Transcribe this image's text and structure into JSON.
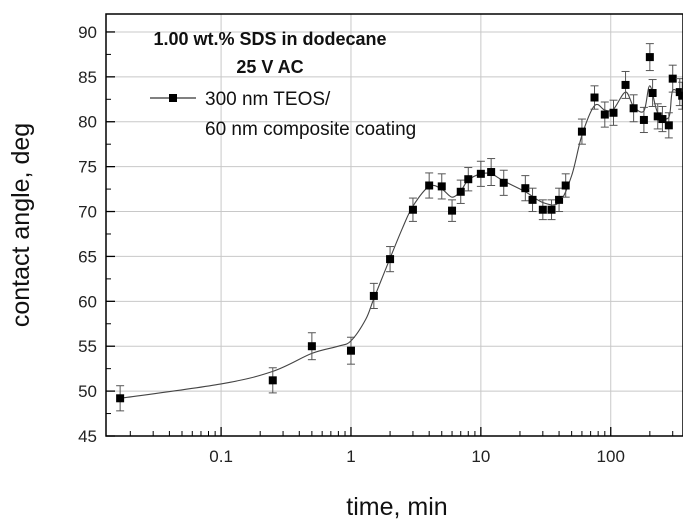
{
  "chart_data": {
    "type": "scatter",
    "title": "",
    "xlabel": "time, min",
    "ylabel": "contact angle, deg",
    "xscale": "log",
    "xlim": [
      0.013,
      360
    ],
    "ylim": [
      45,
      92
    ],
    "x_ticks": [
      {
        "value": 0.1,
        "label": "0.1"
      },
      {
        "value": 1,
        "label": "1"
      },
      {
        "value": 10,
        "label": "10"
      },
      {
        "value": 100,
        "label": "100"
      }
    ],
    "y_ticks": [
      {
        "value": 45,
        "label": "45"
      },
      {
        "value": 50,
        "label": "50"
      },
      {
        "value": 55,
        "label": "55"
      },
      {
        "value": 60,
        "label": "60"
      },
      {
        "value": 65,
        "label": "65"
      },
      {
        "value": 70,
        "label": "70"
      },
      {
        "value": 75,
        "label": "75"
      },
      {
        "value": 80,
        "label": "80"
      },
      {
        "value": 85,
        "label": "85"
      },
      {
        "value": 90,
        "label": "90"
      }
    ],
    "grid": true,
    "legend_position": "top-left",
    "annotations": [
      "1.00 wt.% SDS in dodecane",
      "25 V AC"
    ],
    "series": [
      {
        "name": "300 nm TEOS/\n60 nm composite coating",
        "legend_lines": [
          "300 nm TEOS/",
          "60 nm composite coating"
        ],
        "marker": "square",
        "color": "#000000",
        "points": [
          {
            "x": 0.0167,
            "y": 49.2,
            "err": 1.4
          },
          {
            "x": 0.25,
            "y": 51.2,
            "err": 1.4
          },
          {
            "x": 0.5,
            "y": 55.0,
            "err": 1.5
          },
          {
            "x": 1.0,
            "y": 54.5,
            "err": 1.5
          },
          {
            "x": 1.5,
            "y": 60.6,
            "err": 1.4
          },
          {
            "x": 2.0,
            "y": 64.7,
            "err": 1.4
          },
          {
            "x": 3.0,
            "y": 70.2,
            "err": 1.3
          },
          {
            "x": 4.0,
            "y": 72.9,
            "err": 1.4
          },
          {
            "x": 5.0,
            "y": 72.8,
            "err": 1.4
          },
          {
            "x": 6.0,
            "y": 70.1,
            "err": 1.2
          },
          {
            "x": 7.0,
            "y": 72.2,
            "err": 1.3
          },
          {
            "x": 8.0,
            "y": 73.6,
            "err": 1.3
          },
          {
            "x": 10.0,
            "y": 74.2,
            "err": 1.4
          },
          {
            "x": 12.0,
            "y": 74.4,
            "err": 1.5
          },
          {
            "x": 15.0,
            "y": 73.2,
            "err": 1.4
          },
          {
            "x": 22.0,
            "y": 72.6,
            "err": 1.4
          },
          {
            "x": 25.0,
            "y": 71.3,
            "err": 1.3
          },
          {
            "x": 30.0,
            "y": 70.2,
            "err": 1.1
          },
          {
            "x": 35.0,
            "y": 70.2,
            "err": 1.1
          },
          {
            "x": 40.0,
            "y": 71.3,
            "err": 1.3
          },
          {
            "x": 45.0,
            "y": 72.9,
            "err": 1.3
          },
          {
            "x": 60.0,
            "y": 78.9,
            "err": 1.4
          },
          {
            "x": 75.0,
            "y": 82.7,
            "err": 1.3
          },
          {
            "x": 90.0,
            "y": 80.8,
            "err": 1.4
          },
          {
            "x": 105.0,
            "y": 81.0,
            "err": 1.4
          },
          {
            "x": 130.0,
            "y": 84.1,
            "err": 1.5
          },
          {
            "x": 150.0,
            "y": 81.5,
            "err": 1.5
          },
          {
            "x": 180.0,
            "y": 80.2,
            "err": 1.4
          },
          {
            "x": 200.0,
            "y": 87.2,
            "err": 1.5
          },
          {
            "x": 210.0,
            "y": 83.2,
            "err": 1.5
          },
          {
            "x": 230.0,
            "y": 80.6,
            "err": 1.4
          },
          {
            "x": 250.0,
            "y": 80.3,
            "err": 1.4
          },
          {
            "x": 280.0,
            "y": 79.6,
            "err": 1.4
          },
          {
            "x": 300.0,
            "y": 84.8,
            "err": 1.5
          },
          {
            "x": 340.0,
            "y": 83.3,
            "err": 1.5
          },
          {
            "x": 355.0,
            "y": 82.9,
            "err": 1.5
          }
        ],
        "fit_curve": [
          {
            "x": 0.0167,
            "y": 49.2
          },
          {
            "x": 0.1,
            "y": 50.8
          },
          {
            "x": 0.25,
            "y": 52.2
          },
          {
            "x": 0.5,
            "y": 54.2
          },
          {
            "x": 0.8,
            "y": 55.0
          },
          {
            "x": 1.0,
            "y": 55.6
          },
          {
            "x": 1.3,
            "y": 58.0
          },
          {
            "x": 1.5,
            "y": 60.3
          },
          {
            "x": 2.0,
            "y": 64.8
          },
          {
            "x": 2.5,
            "y": 68.2
          },
          {
            "x": 3.0,
            "y": 70.6
          },
          {
            "x": 4.0,
            "y": 72.8
          },
          {
            "x": 5.0,
            "y": 72.5
          },
          {
            "x": 6.0,
            "y": 71.6
          },
          {
            "x": 7.0,
            "y": 72.3
          },
          {
            "x": 8.0,
            "y": 73.5
          },
          {
            "x": 10.0,
            "y": 74.2
          },
          {
            "x": 12.0,
            "y": 74.2
          },
          {
            "x": 15.0,
            "y": 73.4
          },
          {
            "x": 22.0,
            "y": 72.2
          },
          {
            "x": 30.0,
            "y": 71.0
          },
          {
            "x": 40.0,
            "y": 71.0
          },
          {
            "x": 50.0,
            "y": 74.0
          },
          {
            "x": 60.0,
            "y": 78.5
          },
          {
            "x": 75.0,
            "y": 81.8
          },
          {
            "x": 90.0,
            "y": 81.3
          },
          {
            "x": 105.0,
            "y": 81.4
          },
          {
            "x": 130.0,
            "y": 83.3
          },
          {
            "x": 150.0,
            "y": 81.7
          },
          {
            "x": 180.0,
            "y": 81.2
          },
          {
            "x": 200.0,
            "y": 84.0
          },
          {
            "x": 230.0,
            "y": 81.0
          },
          {
            "x": 280.0,
            "y": 80.5
          },
          {
            "x": 300.0,
            "y": 83.5
          },
          {
            "x": 355.0,
            "y": 82.8
          }
        ]
      }
    ]
  }
}
